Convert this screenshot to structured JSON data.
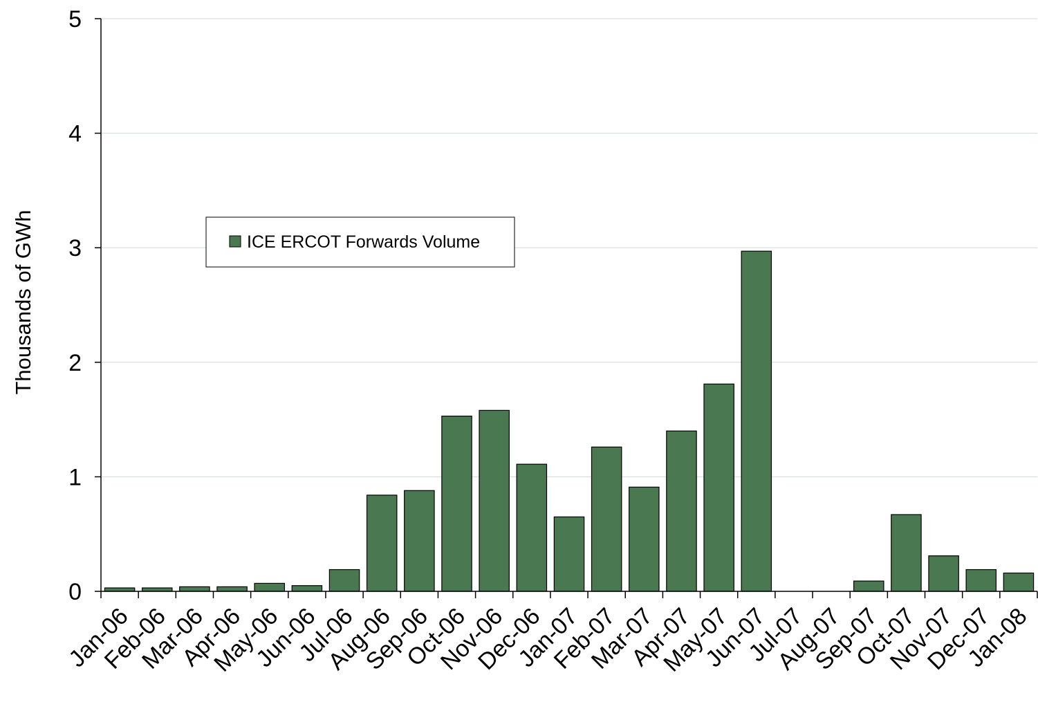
{
  "chart_data": {
    "type": "bar",
    "ylabel": "Thousands of GWh",
    "xlabel": "",
    "ylim": [
      0,
      5
    ],
    "yticks": [
      "0",
      "1",
      "2",
      "3",
      "4",
      "5"
    ],
    "grid": true,
    "legend_position": "upper-left-inside",
    "categories": [
      "Jan-06",
      "Feb-06",
      "Mar-06",
      "Apr-06",
      "May-06",
      "Jun-06",
      "Jul-06",
      "Aug-06",
      "Sep-06",
      "Oct-06",
      "Nov-06",
      "Dec-06",
      "Jan-07",
      "Feb-07",
      "Mar-07",
      "Apr-07",
      "May-07",
      "Jun-07",
      "Jul-07",
      "Aug-07",
      "Sep-07",
      "Oct-07",
      "Nov-07",
      "Dec-07",
      "Jan-08"
    ],
    "series": [
      {
        "name": "ICE ERCOT Forwards Volume",
        "color": "#4a7850",
        "values": [
          0.03,
          0.03,
          0.04,
          0.04,
          0.07,
          0.05,
          0.19,
          0.84,
          0.88,
          1.53,
          1.58,
          1.11,
          0.65,
          1.26,
          0.91,
          1.4,
          1.81,
          2.97,
          0,
          0,
          0.09,
          0.67,
          0.31,
          0.19,
          0.16
        ]
      }
    ]
  }
}
